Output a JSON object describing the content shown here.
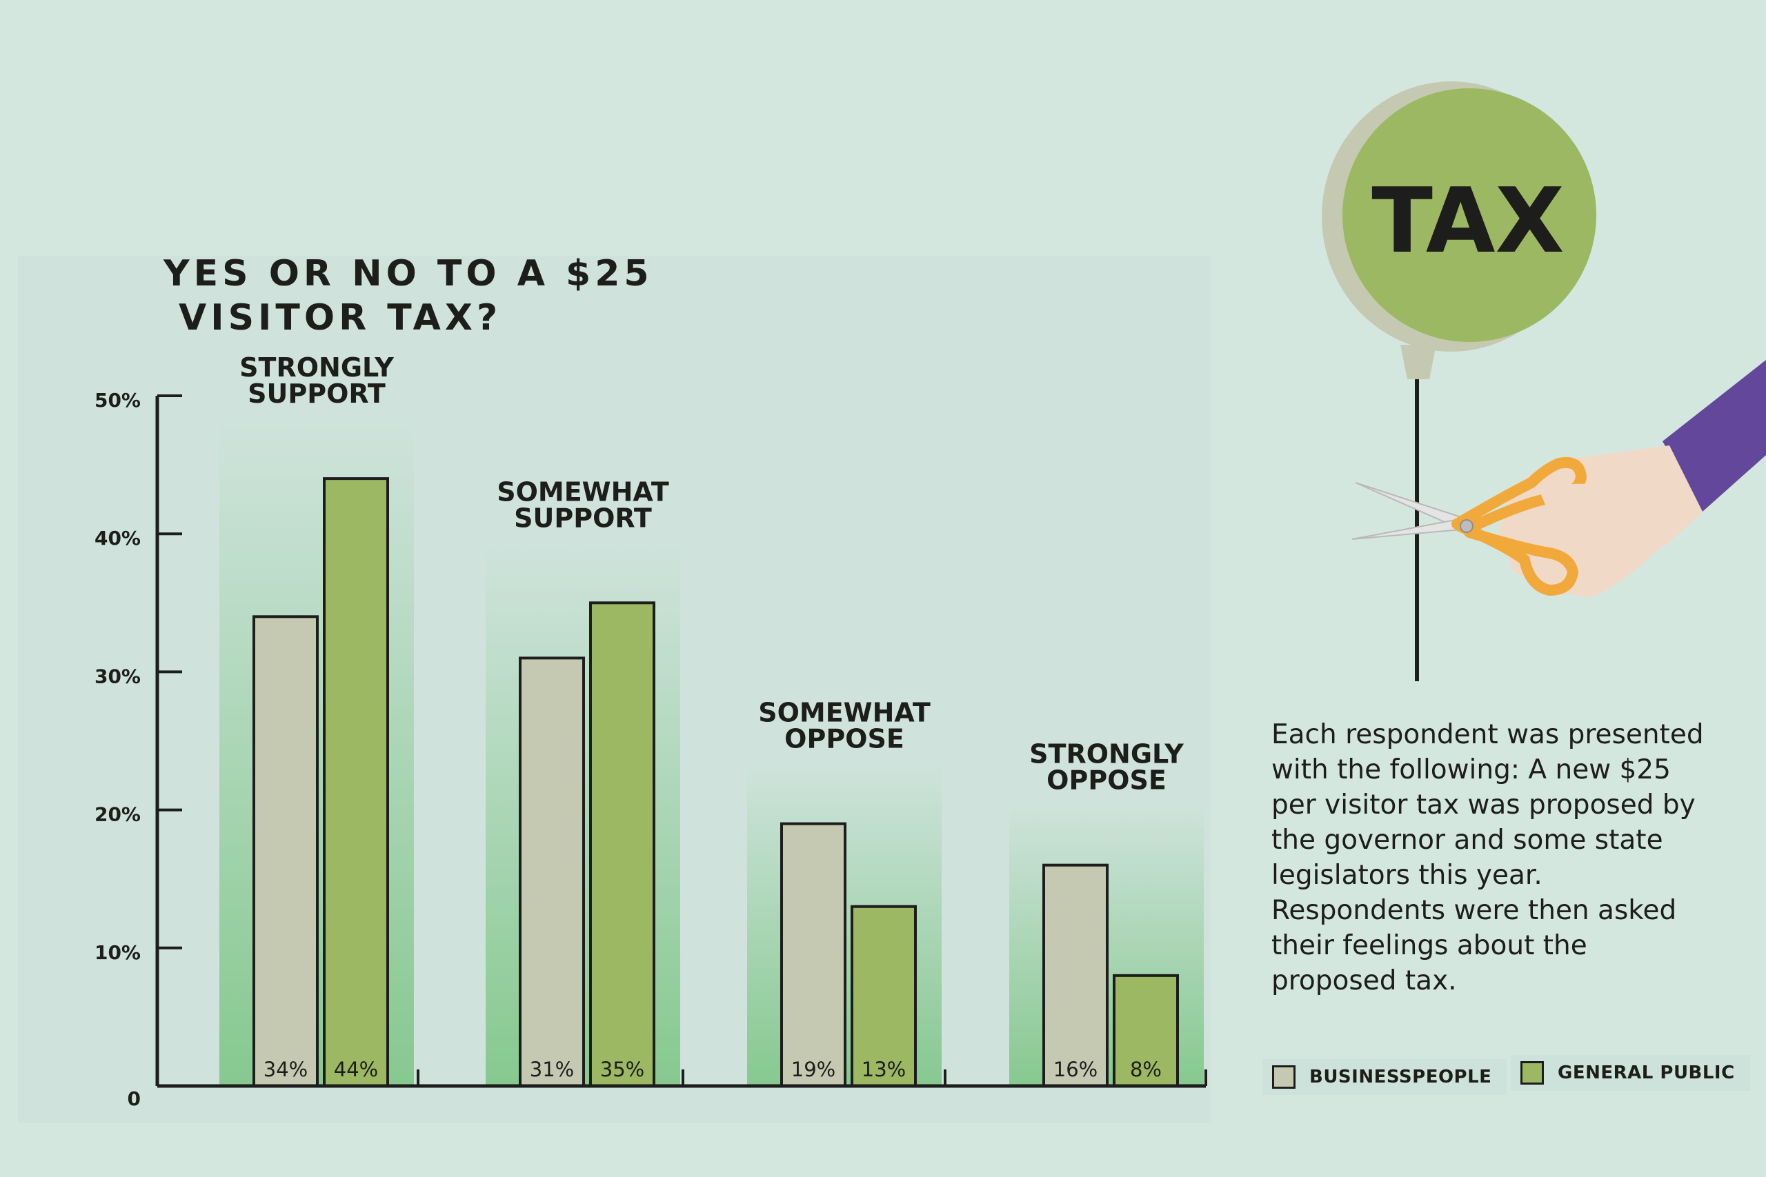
{
  "chart_data": {
    "type": "bar",
    "title": "YES OR NO TO A $25 VISITOR TAX?",
    "title_lines": [
      "YES OR NO TO A $25",
      "VISITOR TAX?"
    ],
    "categories": [
      "STRONGLY SUPPORT",
      "SOMEWHAT SUPPORT",
      "SOMEWHAT OPPOSE",
      "STRONGLY OPPOSE"
    ],
    "category_lines": [
      [
        "STRONGLY",
        "SUPPORT"
      ],
      [
        "SOMEWHAT",
        "SUPPORT"
      ],
      [
        "SOMEWHAT",
        "OPPOSE"
      ],
      [
        "STRONGLY",
        "OPPOSE"
      ]
    ],
    "series": [
      {
        "name": "BUSINESSPEOPLE",
        "values": [
          34,
          31,
          19,
          16
        ],
        "labels": [
          "34%",
          "31%",
          "19%",
          "16%"
        ],
        "color": "#c5c9b2"
      },
      {
        "name": "GENERAL PUBLIC",
        "values": [
          44,
          35,
          13,
          8
        ],
        "labels": [
          "44%",
          "35%",
          "13%",
          "8%"
        ],
        "color": "#9db862"
      }
    ],
    "ylim": [
      0,
      50
    ],
    "yticks": [
      0,
      10,
      20,
      30,
      40,
      50
    ],
    "ytick_labels": [
      "0",
      "10%",
      "20%",
      "30%",
      "40%",
      "50%"
    ],
    "xlabel": "",
    "ylabel": "",
    "legend_position": "bottom-right",
    "grid": false
  },
  "illustration": {
    "balloon_text": "TAX",
    "balloon_color": "#9db862",
    "balloon_shadow_color": "#c5c9b2",
    "sleeve_color": "#62479b",
    "scissors_color": "#f2a93b",
    "hand_color": "#f0d9c7"
  },
  "note": "Each respondent was presented with the following: A new $25 per visitor tax was proposed by the governor and some state legislators this year. Respondents were then asked their feelings about the proposed tax.",
  "colors": {
    "background": "#d4e7df",
    "panel": "#cfe3dc",
    "column_gradient_bottom": "#86c98f",
    "axis": "#1d1d1b"
  }
}
